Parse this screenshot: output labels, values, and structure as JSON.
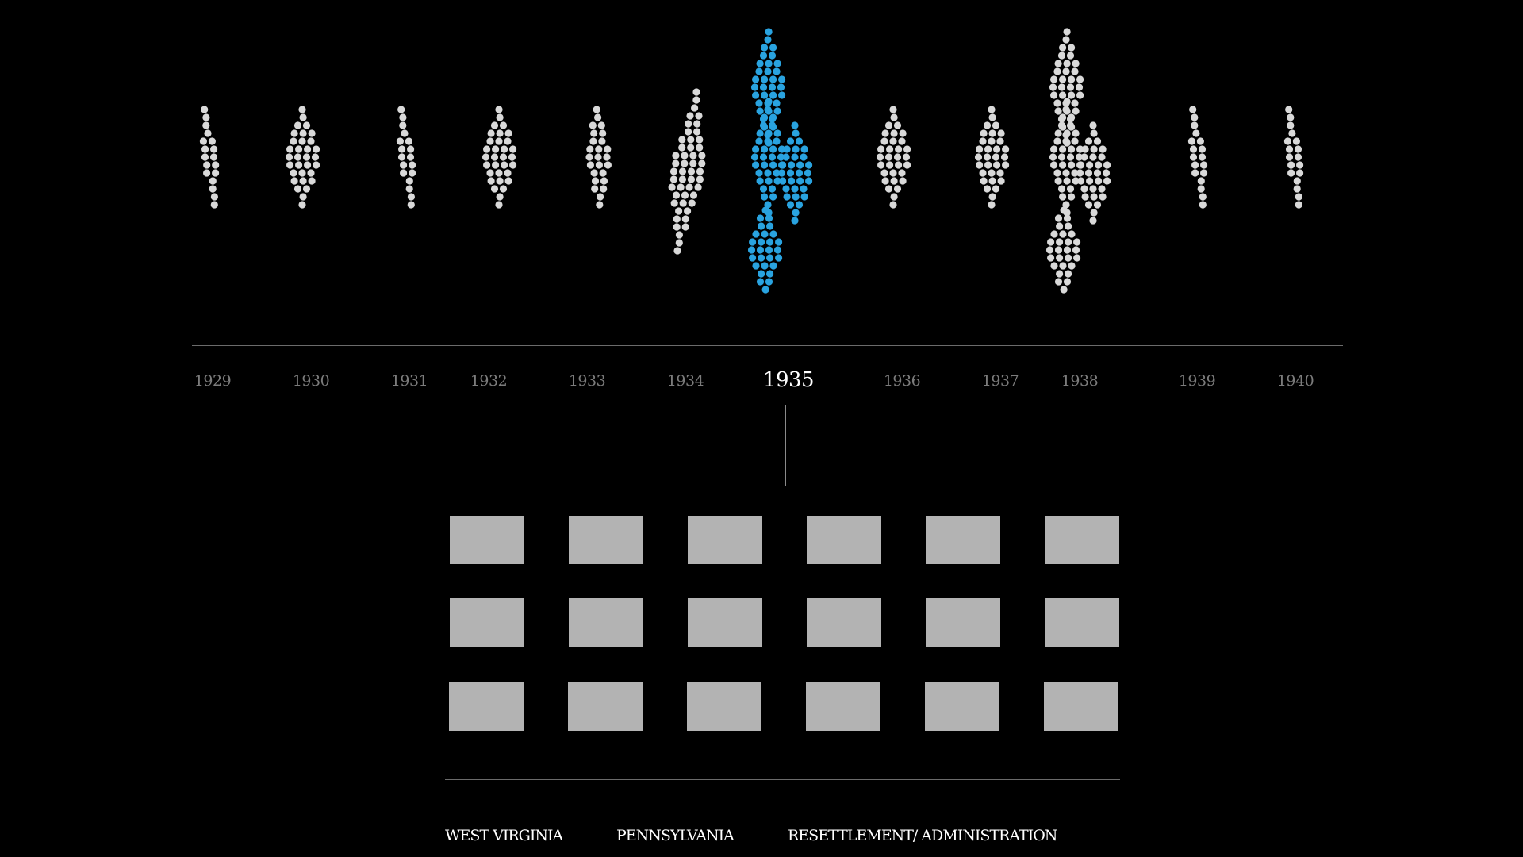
{
  "timeline": {
    "years": [
      "1929",
      "1930",
      "1931",
      "1932",
      "1933",
      "1934",
      "1935",
      "1936",
      "1937",
      "1938",
      "1939",
      "1940"
    ],
    "selected_year": "1935"
  },
  "colors": {
    "background": "#000000",
    "dot_default": "#d9d9d9",
    "dot_selected": "#29a3e0",
    "photo_placeholder": "#b3b3b3",
    "axis": "#6b6b6b"
  },
  "photos": {
    "rows": 3,
    "columns": 6
  },
  "legend": {
    "items": [
      "WEST VIRGINIA",
      "PENNSYLVANIA",
      "RESETTLEMENT/ ADMINISTRATION"
    ]
  }
}
